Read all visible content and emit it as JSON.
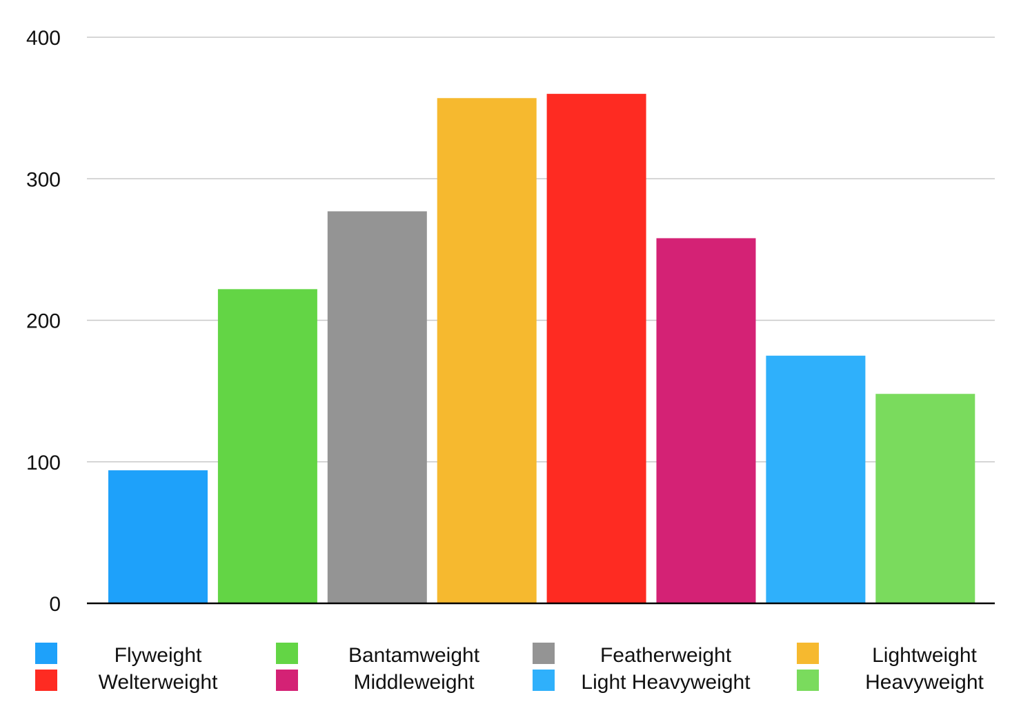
{
  "chart_data": {
    "type": "bar",
    "title": "",
    "xlabel": "",
    "ylabel": "",
    "ylim": [
      0,
      400
    ],
    "yticks": [
      "0",
      "100",
      "200",
      "300",
      "400"
    ],
    "grid": true,
    "legend_placement": "bottom",
    "categories": [
      "Flyweight",
      "Bantamweight",
      "Featherweight",
      "Lightweight",
      "Welterweight",
      "Middleweight",
      "Light Heavyweight",
      "Heavyweight"
    ],
    "values": [
      94,
      222,
      277,
      357,
      360,
      258,
      175,
      148
    ],
    "colors": [
      "#1ea1fa",
      "#63d545",
      "#949494",
      "#f6b92f",
      "#fe2b22",
      "#d42275",
      "#2fb0fb",
      "#7adb5d"
    ],
    "legend": [
      "Flyweight",
      "Bantamweight",
      "Featherweight",
      "Lightweight",
      "Welterweight",
      "Middleweight",
      "Light Heavyweight",
      "Heavyweight"
    ]
  }
}
